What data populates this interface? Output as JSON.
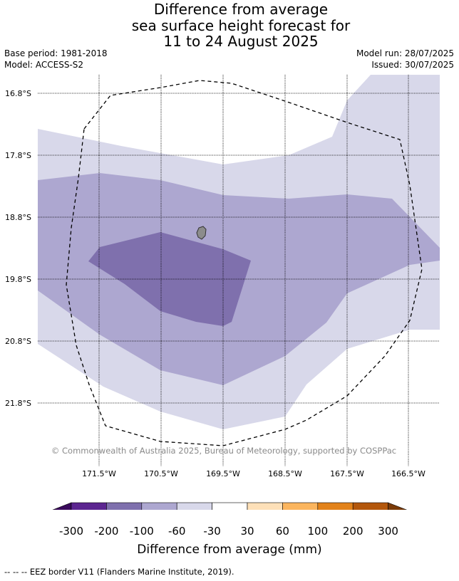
{
  "header": {
    "title_line1": "Difference from average",
    "title_line2": "sea surface height forecast for",
    "title_line3": "11 to 24 August 2025",
    "base_period": "Base period: 1981-2018",
    "model": "Model: ACCESS-S2",
    "model_run": "Model run: 28/07/2025",
    "issued": "Issued: 30/07/2025"
  },
  "map": {
    "lat_labels": [
      "16.8°S",
      "17.8°S",
      "18.8°S",
      "19.8°S",
      "20.8°S",
      "21.8°S"
    ],
    "lon_labels": [
      "171.5°W",
      "170.5°W",
      "169.5°W",
      "168.5°W",
      "167.5°W",
      "166.5°W"
    ],
    "copyright": "© Commonwealth of Australia 2025, Bureau of Meteorology, supported by COSPPac"
  },
  "colorbar": {
    "title": "Difference from average (mm)",
    "tick_labels": [
      "-300",
      "-200",
      "-100",
      "-60",
      "-30",
      "30",
      "60",
      "100",
      "200",
      "300"
    ],
    "colors": {
      "below_min": "#3a0a5c",
      "bins": [
        "#5c2590",
        "#7f70ad",
        "#ada7d0",
        "#d8d8ea",
        "#ffffff",
        "#fde0b8",
        "#fbb55e",
        "#e2821a",
        "#b3570b"
      ],
      "above_max": "#7a3a08"
    }
  },
  "footer": {
    "legend_text": "--  --  -- EEZ border V11 (Flanders Marine Institute, 2019)."
  }
}
